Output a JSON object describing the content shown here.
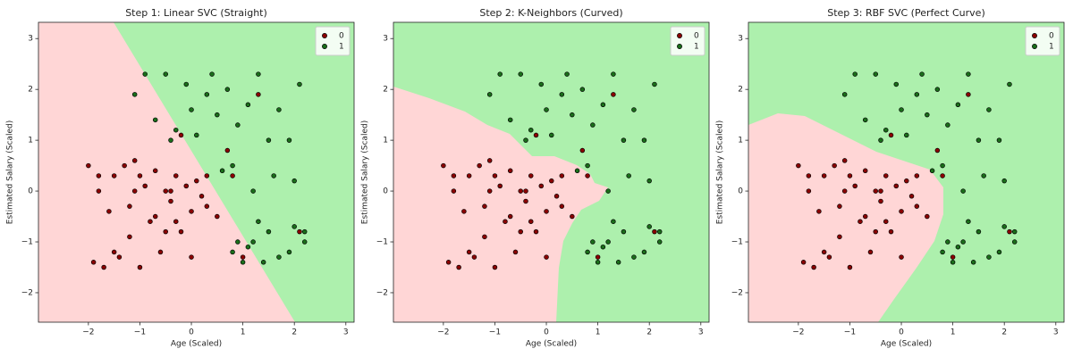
{
  "chart_data": [
    {
      "type": "scatter",
      "title": "Step 1: Linear SVC (Straight)",
      "x_label": "Age (Scaled)",
      "y_label": "Estimated Salary (Scaled)",
      "xlim": [
        -2.97,
        3.16
      ],
      "ylim": [
        -2.58,
        3.32
      ],
      "xticks": [
        {
          "value": -2,
          "label": "−2"
        },
        {
          "value": -1,
          "label": "−1"
        },
        0,
        1,
        2,
        3
      ],
      "yticks": [
        {
          "value": -2,
          "label": "−2"
        },
        {
          "value": -1,
          "label": "−1"
        },
        0,
        1,
        2,
        3
      ],
      "legend": "upper right",
      "series": [
        {
          "name": "0",
          "color": "#8b0000",
          "x": [
            -2.0,
            -1.9,
            -1.8,
            -1.7,
            -1.6,
            -1.5,
            -1.4,
            -1.3,
            -1.2,
            -1.1,
            -1.0,
            -0.9,
            -0.8,
            -0.7,
            -0.6,
            -0.5,
            -0.4,
            -0.3,
            -0.2,
            -0.1,
            0.0,
            0.1,
            0.2,
            0.3,
            -1.8,
            -1.5,
            -1.2,
            -1.0,
            -0.7,
            -0.5,
            -0.3,
            0.0,
            0.3,
            -1.1,
            -0.4,
            0.5,
            0.8,
            1.0,
            2.1,
            -0.2,
            0.7,
            1.3
          ],
          "values": [
            0.5,
            -1.4,
            0.0,
            -1.5,
            -0.4,
            0.3,
            -1.3,
            0.5,
            -0.9,
            0.6,
            -1.5,
            0.1,
            -0.6,
            0.4,
            -1.2,
            0.0,
            -0.2,
            0.3,
            -0.8,
            0.1,
            -0.4,
            0.2,
            -0.1,
            0.3,
            0.3,
            -1.2,
            -0.3,
            0.3,
            -0.5,
            -0.8,
            -0.6,
            -1.3,
            -0.3,
            0.0,
            0.0,
            -0.5,
            0.3,
            -1.3,
            -0.8,
            1.1,
            0.8,
            1.9
          ]
        },
        {
          "name": "1",
          "color": "#1a6e1a",
          "x": [
            -1.1,
            -0.9,
            -0.7,
            -0.5,
            -0.3,
            -0.1,
            0.1,
            0.3,
            0.5,
            0.7,
            0.9,
            1.1,
            1.3,
            1.5,
            1.7,
            1.9,
            2.1,
            -0.4,
            0.0,
            0.4,
            0.8,
            1.2,
            1.6,
            2.0,
            0.8,
            1.0,
            1.2,
            1.4,
            1.7,
            2.0,
            2.2,
            0.9,
            1.1,
            1.5,
            1.9,
            2.2,
            0.6,
            1.3
          ],
          "values": [
            1.9,
            2.3,
            1.4,
            2.3,
            1.2,
            2.1,
            1.1,
            1.9,
            1.5,
            2.0,
            1.3,
            1.7,
            2.3,
            1.0,
            1.6,
            1.0,
            2.1,
            1.0,
            1.6,
            2.3,
            0.5,
            0.0,
            0.3,
            0.2,
            -1.2,
            -1.4,
            -1.0,
            -1.4,
            -1.3,
            -0.7,
            -0.8,
            -1.0,
            -1.1,
            -0.8,
            -1.2,
            -1.0,
            0.4,
            -0.6
          ]
        }
      ]
    },
    {
      "type": "scatter",
      "title": "Step 2: K-Neighbors (Curved)",
      "x_label": "Age (Scaled)",
      "y_label": "Estimated Salary (Scaled)",
      "xlim": [
        -2.97,
        3.16
      ],
      "ylim": [
        -2.58,
        3.32
      ],
      "xticks": [
        {
          "value": -2,
          "label": "−2"
        },
        {
          "value": -1,
          "label": "−1"
        },
        0,
        1,
        2,
        3
      ],
      "yticks": [
        {
          "value": -2,
          "label": "−2"
        },
        {
          "value": -1,
          "label": "−1"
        },
        0,
        1,
        2,
        3
      ],
      "legend": "upper right",
      "series": [
        {
          "name": "0",
          "color": "#8b0000",
          "x": [
            -2.0,
            -1.9,
            -1.8,
            -1.7,
            -1.6,
            -1.5,
            -1.4,
            -1.3,
            -1.2,
            -1.1,
            -1.0,
            -0.9,
            -0.8,
            -0.7,
            -0.6,
            -0.5,
            -0.4,
            -0.3,
            -0.2,
            -0.1,
            0.0,
            0.1,
            0.2,
            0.3,
            -1.8,
            -1.5,
            -1.2,
            -1.0,
            -0.7,
            -0.5,
            -0.3,
            0.0,
            0.3,
            -1.1,
            -0.4,
            0.5,
            0.8,
            1.0,
            2.1,
            -0.2,
            0.7,
            1.3
          ],
          "values": [
            0.5,
            -1.4,
            0.0,
            -1.5,
            -0.4,
            0.3,
            -1.3,
            0.5,
            -0.9,
            0.6,
            -1.5,
            0.1,
            -0.6,
            0.4,
            -1.2,
            0.0,
            -0.2,
            0.3,
            -0.8,
            0.1,
            -0.4,
            0.2,
            -0.1,
            0.3,
            0.3,
            -1.2,
            -0.3,
            0.3,
            -0.5,
            -0.8,
            -0.6,
            -1.3,
            -0.3,
            0.0,
            0.0,
            -0.5,
            0.3,
            -1.3,
            -0.8,
            1.1,
            0.8,
            1.9
          ]
        },
        {
          "name": "1",
          "color": "#1a6e1a",
          "x": [
            -1.1,
            -0.9,
            -0.7,
            -0.5,
            -0.3,
            -0.1,
            0.1,
            0.3,
            0.5,
            0.7,
            0.9,
            1.1,
            1.3,
            1.5,
            1.7,
            1.9,
            2.1,
            -0.4,
            0.0,
            0.4,
            0.8,
            1.2,
            1.6,
            2.0,
            0.8,
            1.0,
            1.2,
            1.4,
            1.7,
            2.0,
            2.2,
            0.9,
            1.1,
            1.5,
            1.9,
            2.2,
            0.6,
            1.3
          ],
          "values": [
            1.9,
            2.3,
            1.4,
            2.3,
            1.2,
            2.1,
            1.1,
            1.9,
            1.5,
            2.0,
            1.3,
            1.7,
            2.3,
            1.0,
            1.6,
            1.0,
            2.1,
            1.0,
            1.6,
            2.3,
            0.5,
            0.0,
            0.3,
            0.2,
            -1.2,
            -1.4,
            -1.0,
            -1.4,
            -1.3,
            -0.7,
            -0.8,
            -1.0,
            -1.1,
            -0.8,
            -1.2,
            -1.0,
            0.4,
            -0.6
          ]
        }
      ]
    },
    {
      "type": "scatter",
      "title": "Step 3: RBF SVC (Perfect Curve)",
      "x_label": "Age (Scaled)",
      "y_label": "Estimated Salary (Scaled)",
      "xlim": [
        -2.97,
        3.16
      ],
      "ylim": [
        -2.58,
        3.32
      ],
      "xticks": [
        {
          "value": -2,
          "label": "−2"
        },
        {
          "value": -1,
          "label": "−1"
        },
        0,
        1,
        2,
        3
      ],
      "yticks": [
        {
          "value": -2,
          "label": "−2"
        },
        {
          "value": -1,
          "label": "−1"
        },
        0,
        1,
        2,
        3
      ],
      "legend": "upper right",
      "series": [
        {
          "name": "0",
          "color": "#8b0000",
          "x": [
            -2.0,
            -1.9,
            -1.8,
            -1.7,
            -1.6,
            -1.5,
            -1.4,
            -1.3,
            -1.2,
            -1.1,
            -1.0,
            -0.9,
            -0.8,
            -0.7,
            -0.6,
            -0.5,
            -0.4,
            -0.3,
            -0.2,
            -0.1,
            0.0,
            0.1,
            0.2,
            0.3,
            -1.8,
            -1.5,
            -1.2,
            -1.0,
            -0.7,
            -0.5,
            -0.3,
            0.0,
            0.3,
            -1.1,
            -0.4,
            0.5,
            0.8,
            1.0,
            2.1,
            -0.2,
            0.7,
            1.3
          ],
          "values": [
            0.5,
            -1.4,
            0.0,
            -1.5,
            -0.4,
            0.3,
            -1.3,
            0.5,
            -0.9,
            0.6,
            -1.5,
            0.1,
            -0.6,
            0.4,
            -1.2,
            0.0,
            -0.2,
            0.3,
            -0.8,
            0.1,
            -0.4,
            0.2,
            -0.1,
            0.3,
            0.3,
            -1.2,
            -0.3,
            0.3,
            -0.5,
            -0.8,
            -0.6,
            -1.3,
            -0.3,
            0.0,
            0.0,
            -0.5,
            0.3,
            -1.3,
            -0.8,
            1.1,
            0.8,
            1.9
          ]
        },
        {
          "name": "1",
          "color": "#1a6e1a",
          "x": [
            -1.1,
            -0.9,
            -0.7,
            -0.5,
            -0.3,
            -0.1,
            0.1,
            0.3,
            0.5,
            0.7,
            0.9,
            1.1,
            1.3,
            1.5,
            1.7,
            1.9,
            2.1,
            -0.4,
            0.0,
            0.4,
            0.8,
            1.2,
            1.6,
            2.0,
            0.8,
            1.0,
            1.2,
            1.4,
            1.7,
            2.0,
            2.2,
            0.9,
            1.1,
            1.5,
            1.9,
            2.2,
            0.6,
            1.3
          ],
          "values": [
            1.9,
            2.3,
            1.4,
            2.3,
            1.2,
            2.1,
            1.1,
            1.9,
            1.5,
            2.0,
            1.3,
            1.7,
            2.3,
            1.0,
            1.6,
            1.0,
            2.1,
            1.0,
            1.6,
            2.3,
            0.5,
            0.0,
            0.3,
            0.2,
            -1.2,
            -1.4,
            -1.0,
            -1.4,
            -1.3,
            -0.7,
            -0.8,
            -1.0,
            -1.1,
            -0.8,
            -1.2,
            -1.0,
            0.4,
            -0.6
          ]
        }
      ]
    }
  ]
}
